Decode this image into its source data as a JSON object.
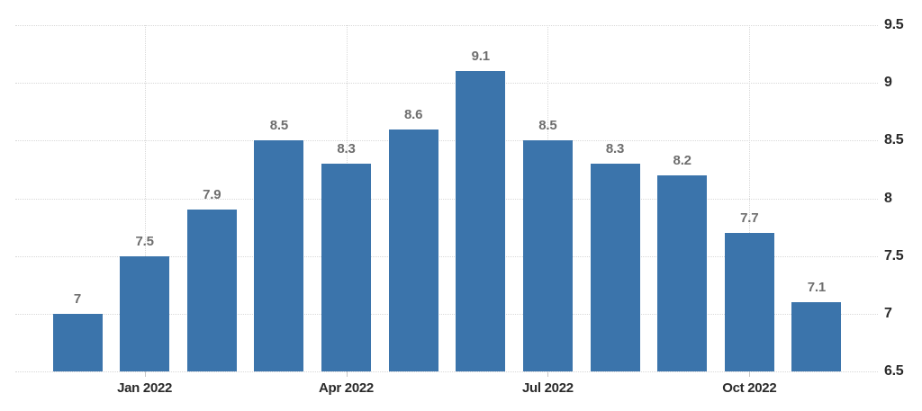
{
  "chart_data": {
    "type": "bar",
    "title": "",
    "values": [
      7.0,
      7.5,
      7.9,
      8.5,
      8.3,
      8.6,
      9.1,
      8.5,
      8.3,
      8.2,
      7.7,
      7.1
    ],
    "bar_labels": [
      "7",
      "7.5",
      "7.9",
      "8.5",
      "8.3",
      "8.6",
      "9.1",
      "8.5",
      "8.3",
      "8.2",
      "7.7",
      "7.1"
    ],
    "x_ticks": [
      {
        "label": "Jan 2022",
        "bar_index": 1
      },
      {
        "label": "Apr 2022",
        "bar_index": 4
      },
      {
        "label": "Jul 2022",
        "bar_index": 7
      },
      {
        "label": "Oct 2022",
        "bar_index": 10
      }
    ],
    "y_ticks": [
      "9.5",
      "9",
      "8.5",
      "8",
      "7.5",
      "7",
      "6.5"
    ],
    "ylim": [
      6.5,
      9.5
    ],
    "grid": true,
    "legend": false,
    "y_axis_side": "right",
    "colors": {
      "bar": "#3b74ab",
      "gridline": "#d8d8d8",
      "bar_label": "#6e6e6e",
      "axis_label": "#2a2a2a",
      "background": "#ffffff"
    }
  }
}
